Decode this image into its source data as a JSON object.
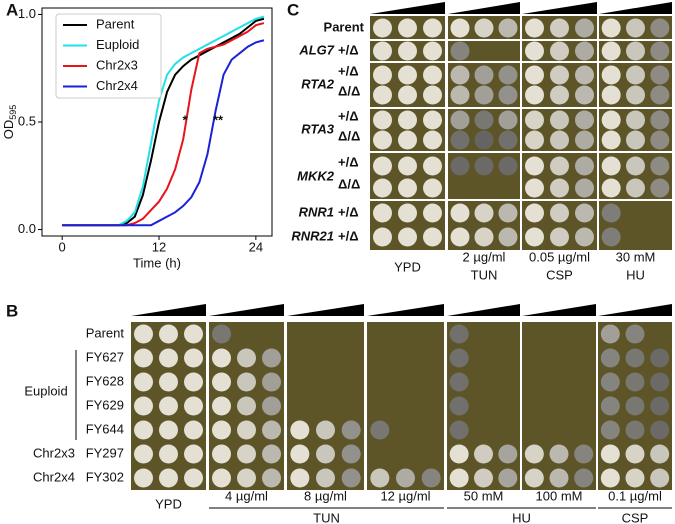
{
  "panel_labels": [
    "A",
    "B",
    "C"
  ],
  "chart_data": {
    "type": "line",
    "xlabel": "Time (h)",
    "ylabel": "OD",
    "ylabel_sub": "595",
    "x": [
      0,
      1,
      2,
      3,
      4,
      5,
      6,
      7,
      8,
      9,
      10,
      11,
      12,
      13,
      14,
      15,
      16,
      17,
      18,
      19,
      20,
      21,
      22,
      23,
      24,
      25
    ],
    "xlim": [
      -2.5,
      26
    ],
    "xticks": [
      0,
      12,
      24
    ],
    "ylim": [
      -0.03,
      1.03
    ],
    "yticks": [
      {
        "value": 0,
        "label": "0.0"
      },
      {
        "value": 0.5,
        "label": "0.5"
      },
      {
        "value": 1,
        "label": "1.0"
      }
    ],
    "legend": "upper left",
    "annotations": [
      "*",
      "**"
    ],
    "series": [
      {
        "name": "Parent",
        "color": "#000000",
        "values": [
          0.02,
          0.02,
          0.02,
          0.02,
          0.02,
          0.02,
          0.02,
          0.02,
          0.03,
          0.06,
          0.16,
          0.32,
          0.5,
          0.64,
          0.72,
          0.76,
          0.79,
          0.81,
          0.83,
          0.85,
          0.87,
          0.89,
          0.91,
          0.94,
          0.97,
          0.98
        ]
      },
      {
        "name": "Euploid",
        "color": "#22e0e8",
        "values": [
          0.02,
          0.02,
          0.02,
          0.02,
          0.02,
          0.02,
          0.02,
          0.02,
          0.04,
          0.08,
          0.2,
          0.4,
          0.6,
          0.72,
          0.77,
          0.8,
          0.82,
          0.84,
          0.86,
          0.88,
          0.9,
          0.92,
          0.94,
          0.96,
          0.98,
          0.99
        ]
      },
      {
        "name": "Chr2x3",
        "color": "#e8141c",
        "values": [
          0.02,
          0.02,
          0.02,
          0.02,
          0.02,
          0.02,
          0.02,
          0.02,
          0.02,
          0.03,
          0.05,
          0.09,
          0.13,
          0.19,
          0.28,
          0.42,
          0.65,
          0.82,
          0.84,
          0.85,
          0.86,
          0.88,
          0.9,
          0.92,
          0.95,
          0.96
        ]
      },
      {
        "name": "Chr2x4",
        "color": "#1a22d8",
        "values": [
          0.02,
          0.02,
          0.02,
          0.02,
          0.02,
          0.02,
          0.02,
          0.02,
          0.02,
          0.02,
          0.02,
          0.02,
          0.04,
          0.06,
          0.08,
          0.11,
          0.15,
          0.22,
          0.35,
          0.55,
          0.72,
          0.79,
          0.82,
          0.85,
          0.87,
          0.88
        ]
      }
    ]
  },
  "panel_b": {
    "rows": [
      "Parent",
      "FY627",
      "FY628",
      "FY629",
      "FY644",
      "FY297",
      "FY302"
    ],
    "groups": [
      "Euploid",
      "Chr2x3",
      "Chr2x4"
    ],
    "conditions": [
      "YPD",
      "4 µg/ml",
      "8 µg/ml",
      "12 µg/ml",
      "50 mM",
      "100 mM",
      "0.1 µg/ml"
    ],
    "drugs": [
      "TUN",
      "HU",
      "CSP"
    ]
  },
  "panel_c": {
    "rows": [
      {
        "label": "Parent"
      },
      {
        "gene": "ALG7",
        "genotypes": [
          "+/Δ"
        ]
      },
      {
        "gene": "RTA2",
        "genotypes": [
          "+/Δ",
          "Δ/Δ"
        ]
      },
      {
        "gene": "RTA3",
        "genotypes": [
          "+/Δ",
          "Δ/Δ"
        ]
      },
      {
        "gene": "MKK2",
        "genotypes": [
          "+/Δ",
          "Δ/Δ"
        ]
      },
      {
        "gene": "RNR1",
        "genotypes": [
          "+/Δ"
        ]
      },
      {
        "gene": "RNR21",
        "genotypes": [
          "+/Δ"
        ]
      }
    ],
    "columns": [
      {
        "label": "YPD"
      },
      {
        "conc": "2 µg/ml",
        "drug": "TUN"
      },
      {
        "conc": "0.05 µg/ml",
        "drug": "CSP"
      },
      {
        "conc": "30 mM",
        "drug": "HU"
      }
    ]
  }
}
